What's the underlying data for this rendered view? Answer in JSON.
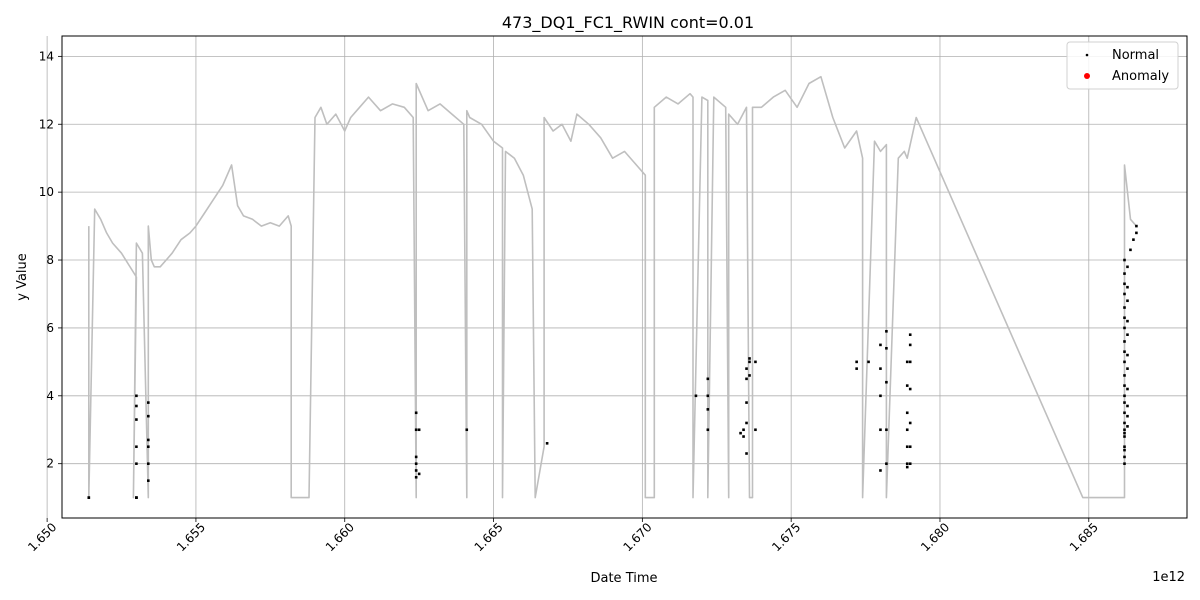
{
  "chart_data": {
    "type": "line",
    "title": "473_DQ1_FC1_RWIN cont=0.01",
    "xlabel": "Date Time",
    "ylabel": "y Value",
    "x_offset_label": "1e12",
    "xlim": [
      1.6505,
      1.6883
    ],
    "ylim": [
      0.4,
      14.6
    ],
    "x_ticks": [
      1.65,
      1.655,
      1.66,
      1.665,
      1.67,
      1.675,
      1.68,
      1.685
    ],
    "x_tick_labels": [
      "1.650",
      "1.655",
      "1.660",
      "1.665",
      "1.670",
      "1.675",
      "1.680",
      "1.685"
    ],
    "y_ticks": [
      2,
      4,
      6,
      8,
      10,
      12,
      14
    ],
    "y_tick_labels": [
      "2",
      "4",
      "6",
      "8",
      "10",
      "12",
      "14"
    ],
    "grid": true,
    "legend_position": "top-right",
    "legend": [
      {
        "label": "Normal",
        "color": "#000000"
      },
      {
        "label": "Anomaly",
        "color": "#ff0000"
      }
    ],
    "line_color": "#bfbfbf",
    "series": [
      {
        "x": [
          1.6514,
          1.6514,
          1.6516,
          1.6518,
          1.652,
          1.6522,
          1.6525,
          1.653,
          1.6529,
          1.653,
          1.6532,
          1.6534,
          1.6534,
          1.6535,
          1.6536,
          1.6538,
          1.654,
          1.6542,
          1.6545,
          1.6548,
          1.655,
          1.6553,
          1.6556,
          1.6559,
          1.6562,
          1.6564,
          1.6566,
          1.6569,
          1.6572,
          1.6575,
          1.6578,
          1.6581,
          1.6582,
          1.6582,
          1.6588,
          1.659,
          1.6592,
          1.6594,
          1.6597,
          1.66,
          1.6602,
          1.6605,
          1.6608,
          1.6612,
          1.6616,
          1.662,
          1.6623,
          1.6624,
          1.6624,
          1.6628,
          1.6632,
          1.6636,
          1.664,
          1.6641,
          1.6641,
          1.6642,
          1.6646,
          1.665,
          1.6653,
          1.6653,
          1.6654,
          1.6657,
          1.666,
          1.6663,
          1.6664,
          1.6664,
          1.6667,
          1.6667,
          1.667,
          1.6673,
          1.6676,
          1.6678,
          1.6682,
          1.6686,
          1.669,
          1.6694,
          1.6698,
          1.6701,
          1.6701,
          1.6704,
          1.6704,
          1.6708,
          1.6712,
          1.6716,
          1.6717,
          1.6717,
          1.672,
          1.6722,
          1.6722,
          1.6724,
          1.6728,
          1.6729,
          1.6729,
          1.6732,
          1.6735,
          1.6736,
          1.6737,
          1.6737,
          1.674,
          1.6744,
          1.6748,
          1.6752,
          1.6756,
          1.676,
          1.6764,
          1.6768,
          1.6772,
          1.6774,
          1.6774,
          1.6778,
          1.678,
          1.6782,
          1.6782,
          1.6786,
          1.6788,
          1.6789,
          1.6792,
          1.6848,
          1.6862,
          1.6862,
          1.6864,
          1.6866
        ],
        "y": [
          9.0,
          1.0,
          9.5,
          9.2,
          8.8,
          8.5,
          8.2,
          7.5,
          1.0,
          8.5,
          8.2,
          1.0,
          9.0,
          8.0,
          7.8,
          7.8,
          8.0,
          8.2,
          8.6,
          8.8,
          9.0,
          9.4,
          9.8,
          10.2,
          10.8,
          9.6,
          9.3,
          9.2,
          9.0,
          9.1,
          9.0,
          9.3,
          9.0,
          1.0,
          1.0,
          12.2,
          12.5,
          12.0,
          12.3,
          11.8,
          12.2,
          12.5,
          12.8,
          12.4,
          12.6,
          12.5,
          12.2,
          1.0,
          13.2,
          12.4,
          12.6,
          12.3,
          12.0,
          1.0,
          12.4,
          12.2,
          12.0,
          11.5,
          11.3,
          1.0,
          11.2,
          11.0,
          10.5,
          9.5,
          1.0,
          1.0,
          2.5,
          12.2,
          11.8,
          12.0,
          11.5,
          12.3,
          12.0,
          11.6,
          11.0,
          11.2,
          10.8,
          10.5,
          1.0,
          1.0,
          12.5,
          12.8,
          12.6,
          12.9,
          12.8,
          1.0,
          12.8,
          12.7,
          1.0,
          12.8,
          12.5,
          1.0,
          12.3,
          12.0,
          12.5,
          1.0,
          1.0,
          12.5,
          12.5,
          12.8,
          13.0,
          12.5,
          13.2,
          13.4,
          12.2,
          11.3,
          11.8,
          11.0,
          1.0,
          11.5,
          11.2,
          11.4,
          1.0,
          11.0,
          11.2,
          11.0,
          12.2,
          1.0,
          1.0,
          10.8,
          9.2,
          9.0
        ]
      }
    ],
    "normal_points": [
      {
        "x": [
          1.6514,
          1.6514,
          1.653,
          1.653,
          1.653,
          1.653,
          1.653,
          1.653,
          1.653,
          1.653
        ],
        "y": [
          1.0,
          1.0,
          1.0,
          1.0,
          2.0,
          2.5,
          3.3,
          3.7,
          4.0,
          1.0
        ]
      },
      {
        "x": [
          1.6534,
          1.6534,
          1.6534,
          1.6534,
          1.6534,
          1.6534
        ],
        "y": [
          1.5,
          2.0,
          2.5,
          2.7,
          3.4,
          3.8
        ]
      },
      {
        "x": [
          1.6624,
          1.6624,
          1.6624,
          1.6624,
          1.6624,
          1.6624,
          1.6625,
          1.6625,
          1.6641
        ],
        "y": [
          1.6,
          1.8,
          2.0,
          2.2,
          3.0,
          3.5,
          1.7,
          3.0,
          3.0
        ]
      },
      {
        "x": [
          1.6668,
          1.6718,
          1.6722,
          1.6722,
          1.6722,
          1.6722,
          1.6733,
          1.6734,
          1.6734,
          1.6735,
          1.6735,
          1.6735,
          1.6735,
          1.6735,
          1.6736,
          1.6736,
          1.6736,
          1.6738,
          1.6738
        ],
        "y": [
          2.6,
          4.0,
          3.0,
          3.6,
          4.0,
          4.5,
          2.9,
          2.8,
          3.0,
          2.3,
          3.2,
          3.8,
          4.5,
          4.8,
          5.0,
          4.6,
          5.1,
          3.0,
          5.0
        ]
      },
      {
        "x": [
          1.6772,
          1.6772,
          1.6776,
          1.678,
          1.678,
          1.678,
          1.678,
          1.678,
          1.6782,
          1.6782,
          1.6782,
          1.6782,
          1.6782,
          1.6789,
          1.6789,
          1.6789,
          1.6789,
          1.6789,
          1.6789,
          1.6789,
          1.679,
          1.679,
          1.679,
          1.679,
          1.679,
          1.679,
          1.679
        ],
        "y": [
          4.8,
          5.0,
          5.0,
          1.8,
          3.0,
          4.0,
          4.8,
          5.5,
          2.0,
          3.0,
          4.4,
          5.4,
          5.9,
          1.9,
          2.0,
          2.5,
          3.0,
          3.5,
          4.3,
          5.0,
          2.0,
          2.5,
          3.2,
          4.2,
          5.0,
          5.5,
          5.8
        ]
      },
      {
        "x": [
          1.6862,
          1.6862,
          1.6862,
          1.6862,
          1.6862,
          1.6862,
          1.6862,
          1.6862,
          1.6862,
          1.6862,
          1.6862,
          1.6862,
          1.6862,
          1.6862,
          1.6862,
          1.6862,
          1.6862,
          1.6862,
          1.6862,
          1.6862,
          1.6862,
          1.6862,
          1.6862,
          1.6863,
          1.6863,
          1.6863,
          1.6863,
          1.6863,
          1.6863,
          1.6863,
          1.6863,
          1.6863,
          1.6863,
          1.6863,
          1.6864,
          1.6865,
          1.6866,
          1.6866
        ],
        "y": [
          2.0,
          2.2,
          2.5,
          2.8,
          3.0,
          3.2,
          3.5,
          3.8,
          4.0,
          4.3,
          4.6,
          5.0,
          5.3,
          5.6,
          6.0,
          6.3,
          6.6,
          7.0,
          7.3,
          7.6,
          8.0,
          2.4,
          2.9,
          3.1,
          3.4,
          3.7,
          4.2,
          4.8,
          5.2,
          5.8,
          6.2,
          6.8,
          7.2,
          7.8,
          8.3,
          8.6,
          8.8,
          9.0
        ]
      }
    ]
  }
}
